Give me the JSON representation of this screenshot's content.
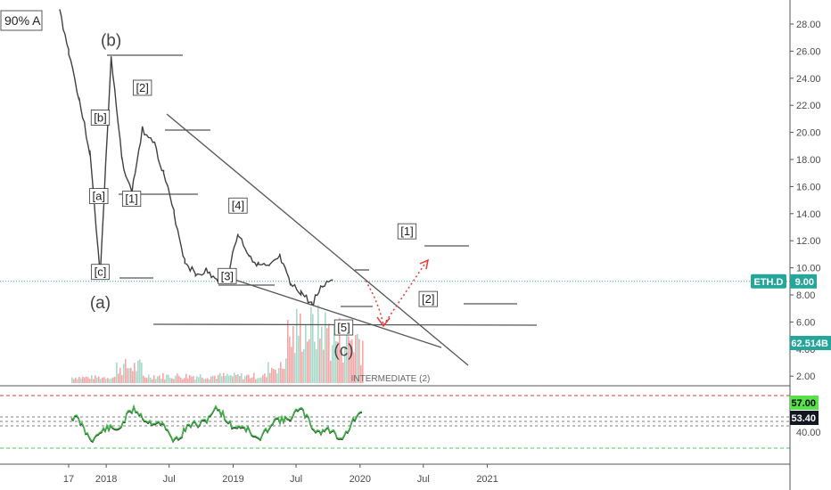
{
  "zoom_badge": "90% A",
  "colors": {
    "line": "#555555",
    "candle": "#404040",
    "volume_down": "#f4a6a6",
    "volume_up": "#a8d8c8",
    "price_line": "#26a69a",
    "rsi": "#3cb044",
    "rsi_shadow": "#111111",
    "red_dash": "#e53935",
    "green_dash": "#43d050",
    "proj": "#e53935",
    "tag_teal": "#26a69a",
    "tag_green": "#57e14a",
    "tag_black": "#131722"
  },
  "chart_data": [
    {
      "type": "line",
      "title": "",
      "price_axis_ticks": [
        "28.00",
        "26.00",
        "24.00",
        "22.00",
        "20.00",
        "18.00",
        "16.00",
        "14.00",
        "12.00",
        "10.00",
        "8.00",
        "6.00",
        "4.00",
        "2.00"
      ],
      "time_axis_ticks": [
        "17",
        "2018",
        "Jul",
        "2019",
        "Jul",
        "2020",
        "Jul",
        "2021"
      ],
      "ylim": [
        1,
        29
      ],
      "series": [
        {
          "x": [
            "2017-09",
            "2017-10",
            "2017-11",
            "2017-12",
            "2018-01",
            "2018-02",
            "2018-03",
            "2018-04",
            "2018-05",
            "2018-06",
            "2018-07",
            "2018-08",
            "2018-09",
            "2018-10",
            "2018-11",
            "2018-12",
            "2019-01",
            "2019-02",
            "2019-03",
            "2019-04",
            "2019-05",
            "2019-06",
            "2019-07",
            "2019-08",
            "2019-09",
            "2019-10"
          ],
          "values": [
            26,
            22.5,
            18.5,
            9.5,
            25.5,
            18,
            15.5,
            20.2,
            19.5,
            17,
            14,
            10.5,
            9.5,
            9.8,
            9,
            9.4,
            12.5,
            11,
            10.2,
            10,
            10.8,
            8.7,
            8.2,
            7.3,
            8.7,
            9.2
          ]
        }
      ],
      "current_value": "9.00",
      "current_label": "ETH.D",
      "volume_label": "62.514B",
      "annotations": [
        {
          "text": "(b)",
          "x": "2018-01",
          "y": 26.4
        },
        {
          "text": "[b]",
          "x": "2017-12",
          "y": 20.8
        },
        {
          "text": "[a]",
          "x": "2017-11",
          "y": 15
        },
        {
          "text": "[c]",
          "x": "2017-12",
          "y": 9.4
        },
        {
          "text": "(a)",
          "x": "2017-12",
          "y": 7
        },
        {
          "text": "[2]",
          "x": "2018-04",
          "y": 23
        },
        {
          "text": "[1]",
          "x": "2018-03",
          "y": 14.8
        },
        {
          "text": "[4]",
          "x": "2019-01",
          "y": 14.3
        },
        {
          "text": "[3]",
          "x": "2018-12",
          "y": 9.1
        },
        {
          "text": "[5]",
          "x": "2019-11",
          "y": 5.3
        },
        {
          "text": "(c)",
          "x": "2019-11",
          "y": 3.5
        },
        {
          "text": "[1]",
          "x": "2020-05",
          "y": 12.4
        },
        {
          "text": "[2]",
          "x": "2020-07",
          "y": 7.4
        }
      ],
      "degree_label": "INTERMEDIATE (2)"
    },
    {
      "type": "line",
      "title": "",
      "price_axis_ticks": [
        "40.00"
      ],
      "levels": [
        70,
        30
      ],
      "series": [
        {
          "name": "",
          "current": "57.00"
        },
        {
          "name": "",
          "current": "53.40"
        }
      ]
    }
  ]
}
